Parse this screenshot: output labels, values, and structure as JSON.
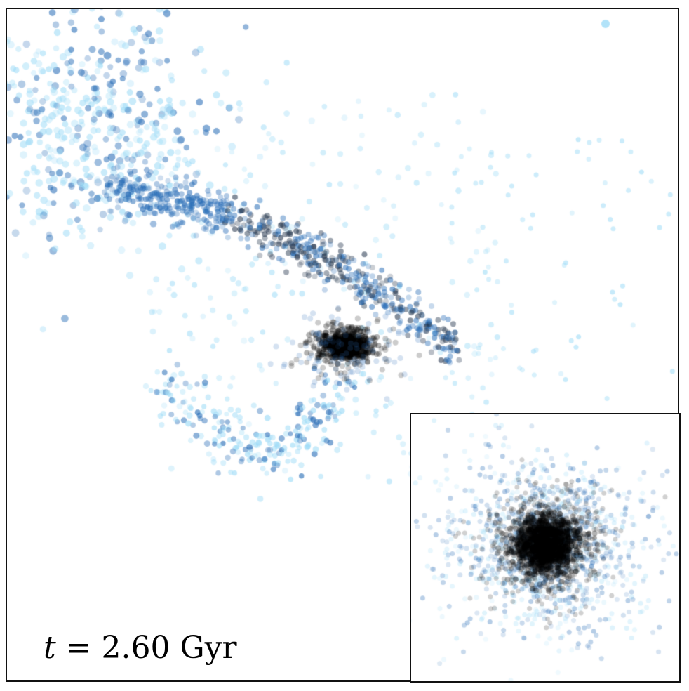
{
  "time_label": {
    "variable": "t",
    "equals": " = ",
    "value": "2.60",
    "unit": "Gyr"
  },
  "colors": {
    "core": "#000000",
    "tidal_stream_dark": "#2b6fb8",
    "tidal_stream_light": "#9fdcf7",
    "frame": "#111111",
    "background": "#ffffff"
  },
  "panels": {
    "main": "simulation-snapshot",
    "inset": "zoomed-core"
  }
}
